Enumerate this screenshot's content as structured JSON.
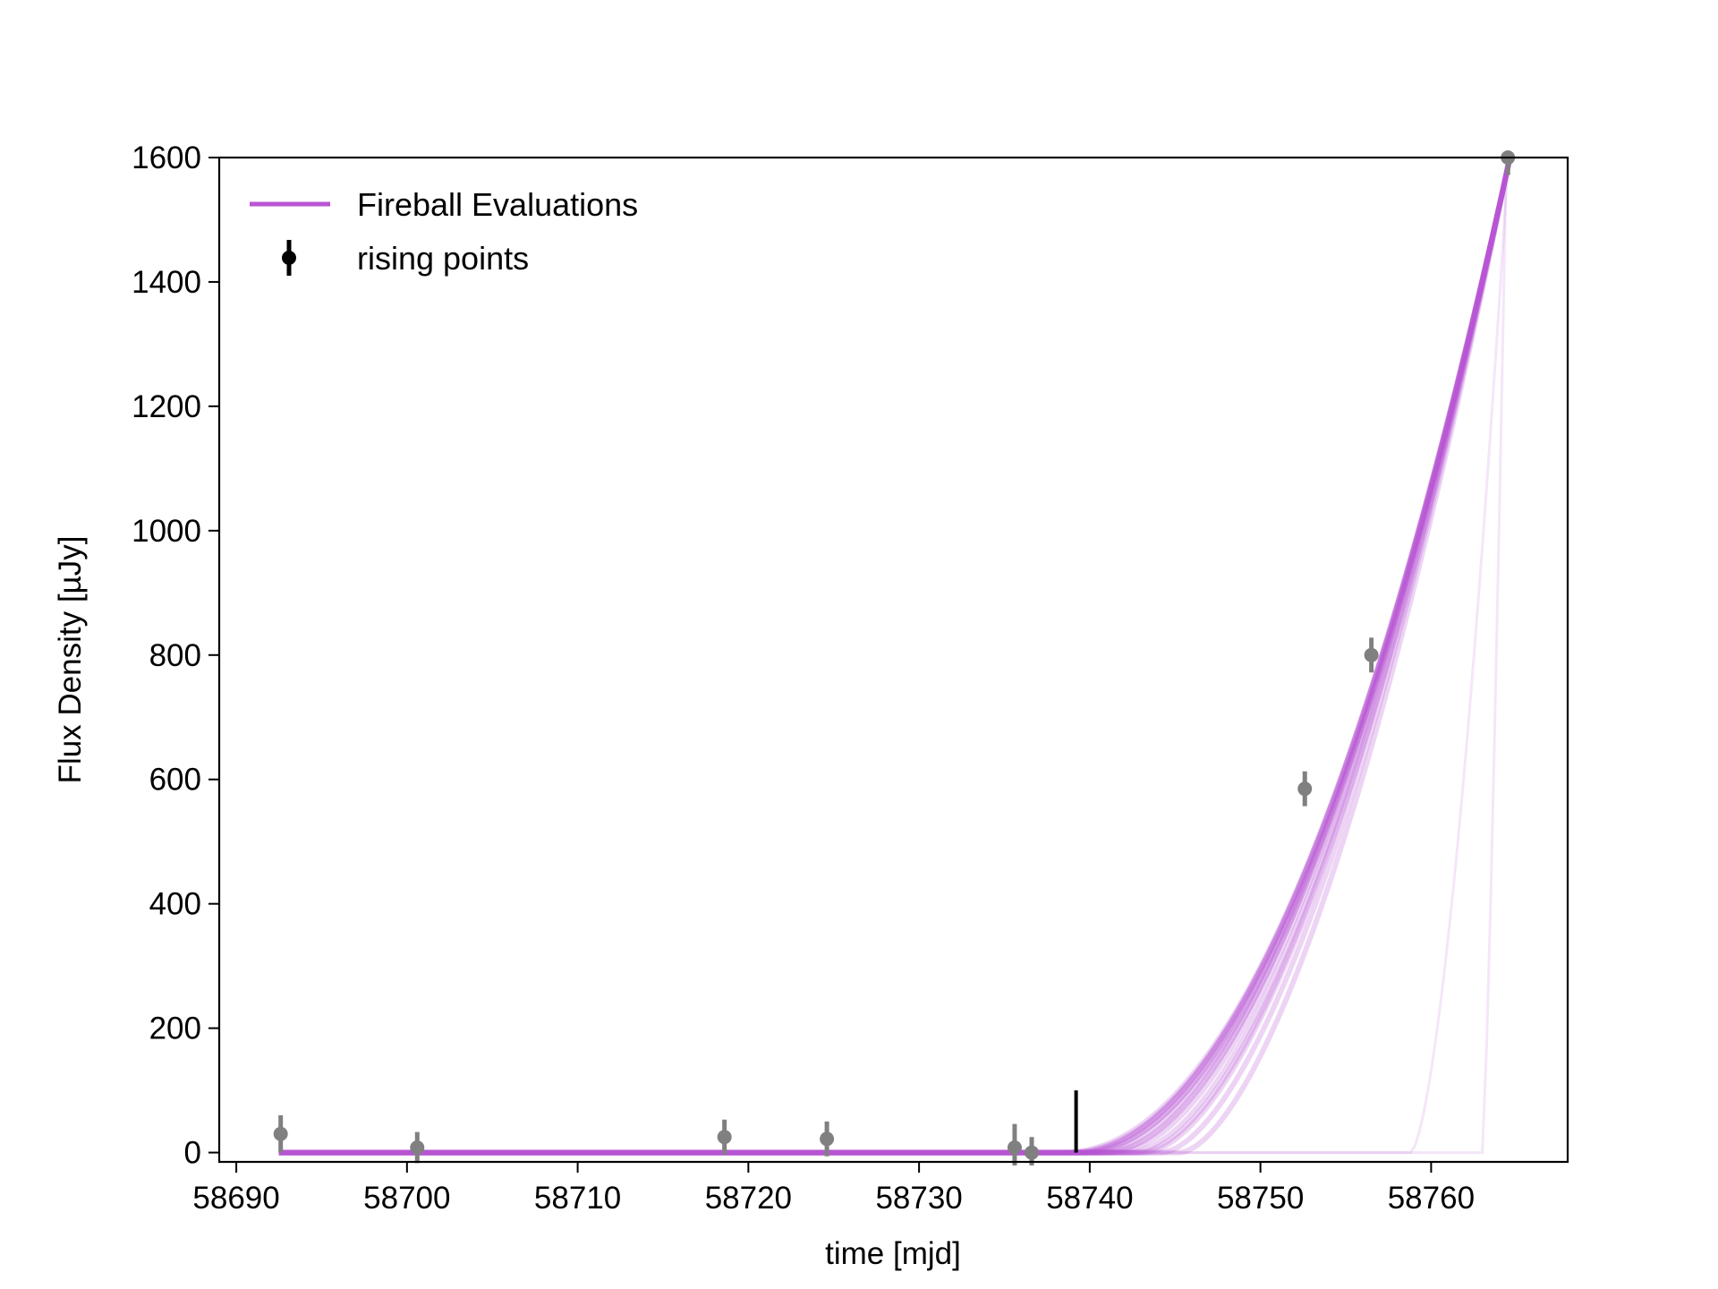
{
  "chart_data": {
    "type": "line",
    "title": "",
    "xlabel": "time [mjd]",
    "ylabel": "Flux Density [µJy]",
    "xlim": [
      58689,
      58768
    ],
    "ylim": [
      -15,
      1600
    ],
    "xticks": [
      58690,
      58700,
      58710,
      58720,
      58730,
      58740,
      58750,
      58760
    ],
    "yticks": [
      0,
      200,
      400,
      600,
      800,
      1000,
      1200,
      1400,
      1600
    ],
    "grid": false,
    "legend": {
      "placement": "upper-left",
      "entries": [
        {
          "label": "Fireball Evaluations",
          "kind": "line",
          "color": "#b855d3"
        },
        {
          "label": "rising points",
          "kind": "errorbar",
          "color": "#000000"
        }
      ]
    },
    "series": [
      {
        "name": "Fireball Evaluations",
        "kind": "model-bundle",
        "color": "#b855d3",
        "base_flux": 0,
        "t_start": 58692.5,
        "t_end": 58764.3,
        "peak_flux": 1560,
        "fit_curves": [
          {
            "t0": 58739.0,
            "alpha": 2.0
          },
          {
            "t0": 58739.3,
            "alpha": 1.97
          },
          {
            "t0": 58738.8,
            "alpha": 2.03
          },
          {
            "t0": 58739.7,
            "alpha": 1.95
          },
          {
            "t0": 58740.2,
            "alpha": 1.92
          },
          {
            "t0": 58740.8,
            "alpha": 1.88
          },
          {
            "t0": 58741.5,
            "alpha": 1.84
          },
          {
            "t0": 58742.3,
            "alpha": 1.8
          },
          {
            "t0": 58743.2,
            "alpha": 1.75
          },
          {
            "t0": 58744.2,
            "alpha": 1.7
          },
          {
            "t0": 58745.3,
            "alpha": 1.65
          },
          {
            "t0": 58738.4,
            "alpha": 2.06
          },
          {
            "t0": 58739.5,
            "alpha": 2.0
          },
          {
            "t0": 58741.0,
            "alpha": 1.86
          },
          {
            "t0": 58742.8,
            "alpha": 1.78
          }
        ],
        "outlier_curves": [
          {
            "t0": 58758.8,
            "alpha": 1.6,
            "peak": 1500
          },
          {
            "t0": 58763.0,
            "alpha": 1.3,
            "peak": 1450
          }
        ]
      },
      {
        "name": "rising points",
        "kind": "errorbar",
        "color": "#808080",
        "points": [
          {
            "x": 58692.6,
            "y": 30,
            "err": 30
          },
          {
            "x": 58700.6,
            "y": 8,
            "err": 25
          },
          {
            "x": 58718.6,
            "y": 25,
            "err": 28
          },
          {
            "x": 58724.6,
            "y": 22,
            "err": 28
          },
          {
            "x": 58735.6,
            "y": 8,
            "err": 38
          },
          {
            "x": 58736.6,
            "y": 0,
            "err": 25
          },
          {
            "x": 58752.6,
            "y": 585,
            "err": 28
          },
          {
            "x": 58756.5,
            "y": 800,
            "err": 28
          },
          {
            "x": 58764.5,
            "y": 1600,
            "err": 28
          }
        ]
      }
    ],
    "annotations": [
      {
        "kind": "vertical-marker",
        "x": 58739.2,
        "y_from": 0,
        "y_to": 100,
        "color": "#000000"
      }
    ]
  }
}
